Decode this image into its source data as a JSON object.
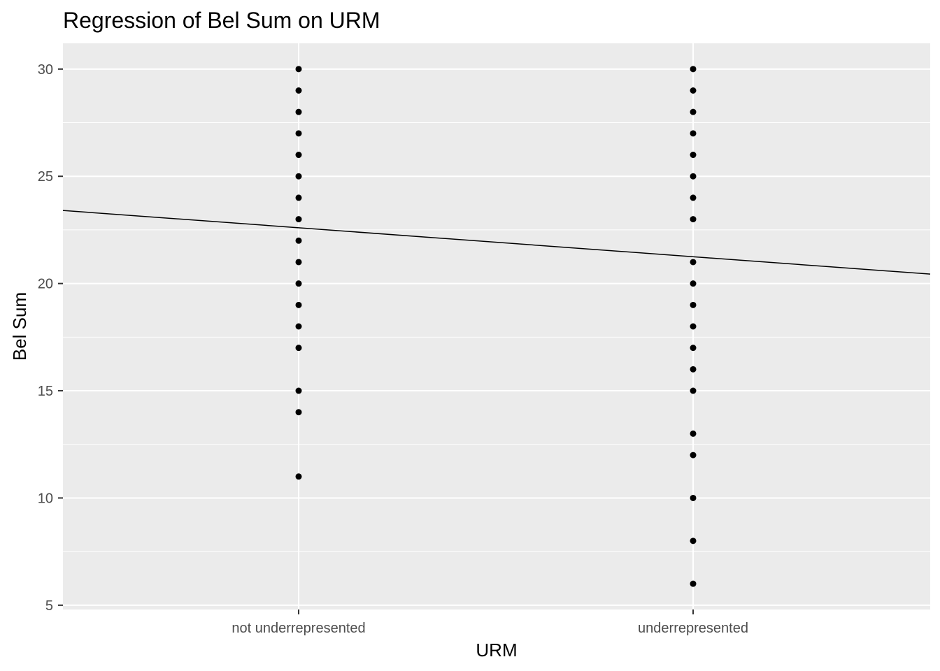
{
  "chart_data": {
    "type": "scatter",
    "title": "Regression of Bel Sum on URM",
    "xlabel": "URM",
    "ylabel": "Bel Sum",
    "categories": [
      "not underrepresented",
      "underrepresented"
    ],
    "ylim": [
      4.8,
      31.2
    ],
    "yticks": [
      5,
      10,
      15,
      20,
      25,
      30
    ],
    "grid": true,
    "legend": "none",
    "series": [
      {
        "points": [
          {
            "x": "not underrepresented",
            "y": 30
          },
          {
            "x": "not underrepresented",
            "y": 29
          },
          {
            "x": "not underrepresented",
            "y": 28
          },
          {
            "x": "not underrepresented",
            "y": 27
          },
          {
            "x": "not underrepresented",
            "y": 26
          },
          {
            "x": "not underrepresented",
            "y": 25
          },
          {
            "x": "not underrepresented",
            "y": 24
          },
          {
            "x": "not underrepresented",
            "y": 23
          },
          {
            "x": "not underrepresented",
            "y": 22
          },
          {
            "x": "not underrepresented",
            "y": 21
          },
          {
            "x": "not underrepresented",
            "y": 20
          },
          {
            "x": "not underrepresented",
            "y": 19
          },
          {
            "x": "not underrepresented",
            "y": 18
          },
          {
            "x": "not underrepresented",
            "y": 17
          },
          {
            "x": "not underrepresented",
            "y": 15
          },
          {
            "x": "not underrepresented",
            "y": 14
          },
          {
            "x": "not underrepresented",
            "y": 11
          },
          {
            "x": "underrepresented",
            "y": 30
          },
          {
            "x": "underrepresented",
            "y": 29
          },
          {
            "x": "underrepresented",
            "y": 28
          },
          {
            "x": "underrepresented",
            "y": 27
          },
          {
            "x": "underrepresented",
            "y": 26
          },
          {
            "x": "underrepresented",
            "y": 25
          },
          {
            "x": "underrepresented",
            "y": 24
          },
          {
            "x": "underrepresented",
            "y": 23
          },
          {
            "x": "underrepresented",
            "y": 21
          },
          {
            "x": "underrepresented",
            "y": 20
          },
          {
            "x": "underrepresented",
            "y": 19
          },
          {
            "x": "underrepresented",
            "y": 18
          },
          {
            "x": "underrepresented",
            "y": 17
          },
          {
            "x": "underrepresented",
            "y": 16
          },
          {
            "x": "underrepresented",
            "y": 15
          },
          {
            "x": "underrepresented",
            "y": 13
          },
          {
            "x": "underrepresented",
            "y": 12
          },
          {
            "x": "underrepresented",
            "y": 10
          },
          {
            "x": "underrepresented",
            "y": 8
          },
          {
            "x": "underrepresented",
            "y": 6
          }
        ]
      }
    ],
    "regression_line": {
      "at_not_underrepresented": 22.6,
      "at_underrepresented": 21.25
    },
    "colors": {
      "panel": "#ebebeb",
      "grid": "#ffffff",
      "point": "#000000",
      "line": "#000000"
    }
  }
}
